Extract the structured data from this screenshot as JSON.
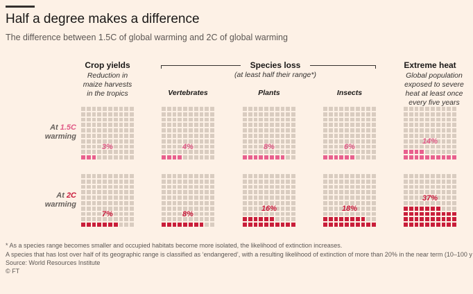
{
  "header": {
    "title": "Half a degree makes a difference",
    "subtitle": "The difference between 1.5C of global warming and 2C of global warming"
  },
  "columns": {
    "crop": {
      "heading": "Crop yields",
      "sub": "Reduction in maize harvests in the tropics"
    },
    "species": {
      "heading": "Species loss",
      "sub": "(at least half their range*)"
    },
    "heat": {
      "heading": "Extreme heat",
      "sub": "Global population exposed to severe heat at least once every five years"
    },
    "vertebrates": "Vertebrates",
    "plants": "Plants",
    "insects": "Insects"
  },
  "rows": {
    "r1": {
      "prefix": "At ",
      "temp": "1.5C",
      "suffix": "warming"
    },
    "r2": {
      "prefix": "At ",
      "temp": "2C",
      "suffix": "warming"
    }
  },
  "colors": {
    "at_1_5C": "#e8608e",
    "at_2C": "#c91e3a",
    "empty_cell": "#d9ccc0"
  },
  "chart_data": {
    "type": "waffle",
    "categories": [
      "Crop yields",
      "Vertebrates",
      "Plants",
      "Insects",
      "Extreme heat"
    ],
    "series": [
      {
        "name": "At 1.5C warming",
        "values": [
          3,
          4,
          8,
          6,
          14
        ],
        "labels": [
          "3%",
          "4%",
          "8%",
          "6%",
          "14%"
        ]
      },
      {
        "name": "At 2C warming",
        "values": [
          7,
          8,
          16,
          18,
          37
        ],
        "labels": [
          "7%",
          "8%",
          "16%",
          "18%",
          "37%"
        ]
      }
    ]
  },
  "footnotes": {
    "line1": "* As a species range becomes smaller and occupied habitats become more isolated, the likelihood of extinction increases.",
    "line2": "A species that has lost over half of its geographic range is classified as ‘endangered’, with a resulting likelihood of extinction of more than 20% in the near term (10–100 y",
    "source": "Source: World Resources Institute",
    "credit": "© FT"
  }
}
